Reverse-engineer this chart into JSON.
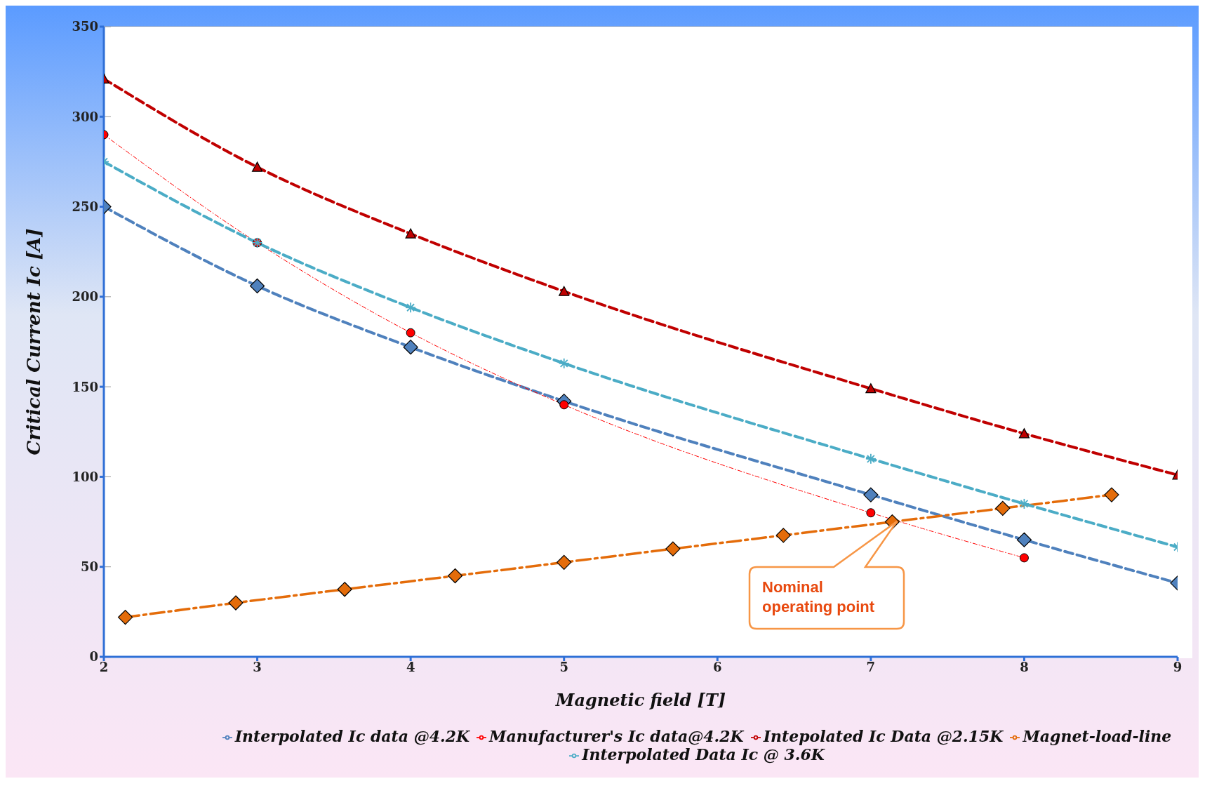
{
  "chart_data": {
    "type": "line",
    "xlabel": "Magnetic field [T]",
    "ylabel": "Critical Current Ic [A]",
    "xlim": [
      2,
      9
    ],
    "xticks": [
      2,
      3,
      4,
      5,
      6,
      7,
      8,
      9
    ],
    "ylim": [
      0,
      350
    ],
    "yticks": [
      0,
      50,
      100,
      150,
      200,
      250,
      300,
      350
    ],
    "grid": true,
    "legend": "bottom",
    "series": [
      {
        "name": "Interpolated Ic data @4.2K",
        "color": "#4f81bd",
        "marker": "diamond",
        "line_style": "dashed",
        "x": [
          2,
          3,
          4,
          5,
          7,
          8,
          9
        ],
        "values": [
          250,
          206,
          172,
          142,
          90,
          65,
          41
        ]
      },
      {
        "name": "Manufacturer's Ic data@4.2K",
        "color": "#ff0000",
        "marker": "circle",
        "line_style": "dashdot",
        "x": [
          2,
          3,
          4,
          5,
          7,
          8
        ],
        "values": [
          290,
          230,
          180,
          140,
          80,
          55
        ]
      },
      {
        "name": "Intepolated Ic Data @2.15K",
        "color": "#c00000",
        "marker": "triangle",
        "line_style": "dashed",
        "x": [
          2,
          3,
          4,
          5,
          7,
          8,
          9
        ],
        "values": [
          321,
          272,
          235,
          203,
          149,
          124,
          101
        ]
      },
      {
        "name": "Magnet-load-line",
        "color": "#e46c0a",
        "marker": "diamond",
        "line_style": "longdashdot",
        "x": [
          2.14,
          2.86,
          3.57,
          4.29,
          5,
          5.71,
          6.43,
          7.14,
          7.86,
          8.57
        ],
        "values": [
          22,
          30,
          37.5,
          45,
          52.5,
          60,
          67.5,
          75,
          82.5,
          90
        ]
      },
      {
        "name": "Interpolated Data Ic @ 3.6K",
        "color": "#4bacc6",
        "marker": "cross",
        "line_style": "dashed",
        "x": [
          2,
          3,
          4,
          5,
          7,
          8,
          9
        ],
        "values": [
          275,
          230,
          194,
          163,
          110,
          85,
          61
        ]
      }
    ],
    "annotations": [
      "Nominal\noperating point"
    ]
  }
}
